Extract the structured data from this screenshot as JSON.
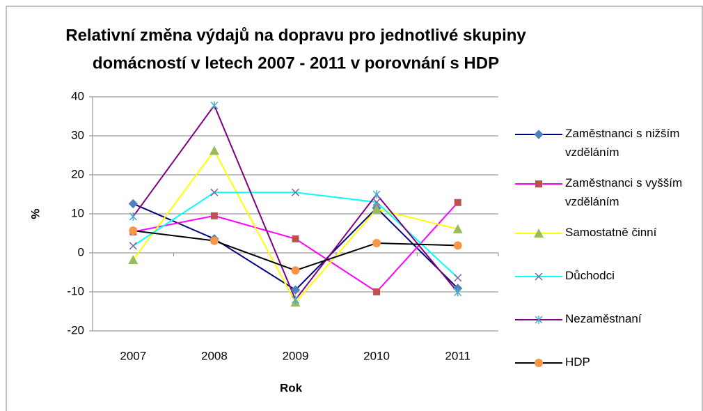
{
  "chart_data": {
    "type": "line",
    "title": [
      "Relativní změna výdajů na dopravu pro jednotlivé skupiny",
      "domácností v letech 2007 - 2011 v porovnání s HDP"
    ],
    "x_label": "Rok",
    "y_label": "%",
    "categories": [
      "2007",
      "2008",
      "2009",
      "2010",
      "2011"
    ],
    "series": [
      {
        "name": "Zaměstnanci s nižším vzděláním",
        "color": "#000080",
        "marker": "diamond",
        "marker_color": "#4f81bd",
        "values": [
          12.6,
          3.6,
          -9.5,
          11.5,
          -9.1
        ]
      },
      {
        "name": "Zaměstnanci s vyšším vzděláním",
        "color": "#ff00ff",
        "marker": "square",
        "marker_color": "#c0504d",
        "values": [
          5.4,
          9.5,
          3.6,
          -10,
          12.9
        ]
      },
      {
        "name": "Samostatně činní",
        "color": "#ffff00",
        "marker": "triangle",
        "marker_color": "#9bbb59",
        "values": [
          -1.8,
          26.2,
          -12.7,
          11.2,
          6.1
        ]
      },
      {
        "name": "Důchodci",
        "color": "#00ffff",
        "marker": "x",
        "marker_color": "#8064a2",
        "values": [
          1.8,
          15.5,
          15.5,
          13,
          -6.4
        ]
      },
      {
        "name": "Nezaměstnaní",
        "color": "#800080",
        "marker": "star",
        "marker_color": "#4bacc6",
        "values": [
          9.3,
          37.8,
          -12,
          15,
          -10.1
        ]
      },
      {
        "name": "HDP",
        "color": "#000000",
        "marker": "circle",
        "marker_color": "#f79646",
        "values": [
          5.7,
          3.1,
          -4.5,
          2.5,
          1.9
        ]
      }
    ],
    "ylim": [
      -20,
      40
    ],
    "yticks": [
      -20,
      -10,
      0,
      10,
      20,
      30,
      40
    ],
    "grid": true,
    "legend": "right"
  }
}
